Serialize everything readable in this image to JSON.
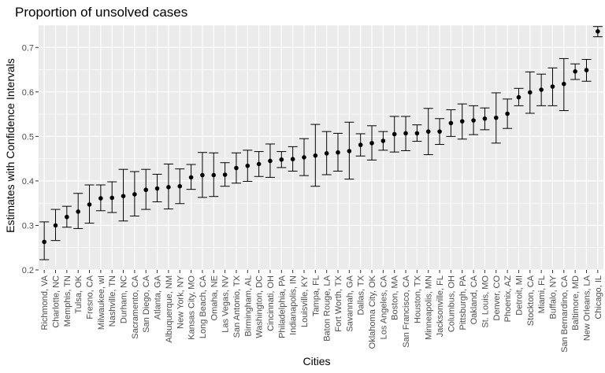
{
  "chart_data": {
    "type": "scatter",
    "title": "Proportion of unsolved cases",
    "xlabel": "Cities",
    "ylabel": "Estimates with Confidence Intervals",
    "ylim": [
      0.2,
      0.75
    ],
    "yticks": [
      "0.2",
      "0.3",
      "0.4",
      "0.5",
      "0.6",
      "0.7"
    ],
    "grid": true,
    "colors": {
      "panel": "#ebebeb",
      "grid": "#ffffff",
      "point": "#000000"
    },
    "points": [
      {
        "city": "Richmond, VA",
        "estimate": 0.263,
        "lower": 0.223,
        "upper": 0.308
      },
      {
        "city": "Charlotte, NC",
        "estimate": 0.3,
        "lower": 0.266,
        "upper": 0.336
      },
      {
        "city": "Memphis, TN",
        "estimate": 0.319,
        "lower": 0.296,
        "upper": 0.343
      },
      {
        "city": "Tulsa, OK",
        "estimate": 0.331,
        "lower": 0.293,
        "upper": 0.372
      },
      {
        "city": "Fresno, CA",
        "estimate": 0.347,
        "lower": 0.305,
        "upper": 0.391
      },
      {
        "city": "Milwaukee, wI",
        "estimate": 0.361,
        "lower": 0.333,
        "upper": 0.391
      },
      {
        "city": "Nashville, TN",
        "estimate": 0.362,
        "lower": 0.329,
        "upper": 0.398
      },
      {
        "city": "Durham, NC",
        "estimate": 0.366,
        "lower": 0.31,
        "upper": 0.426
      },
      {
        "city": "Sacramento, CA",
        "estimate": 0.37,
        "lower": 0.321,
        "upper": 0.421
      },
      {
        "city": "San Diego, CA",
        "estimate": 0.38,
        "lower": 0.336,
        "upper": 0.426
      },
      {
        "city": "Atlanta, GA",
        "estimate": 0.383,
        "lower": 0.353,
        "upper": 0.415
      },
      {
        "city": "Albuquerque, NM",
        "estimate": 0.386,
        "lower": 0.337,
        "upper": 0.438
      },
      {
        "city": "New York, NY",
        "estimate": 0.388,
        "lower": 0.349,
        "upper": 0.427
      },
      {
        "city": "Kansas City, MO",
        "estimate": 0.408,
        "lower": 0.381,
        "upper": 0.437
      },
      {
        "city": "Long Beach, CA",
        "estimate": 0.413,
        "lower": 0.363,
        "upper": 0.464
      },
      {
        "city": "Omaha, NE",
        "estimate": 0.413,
        "lower": 0.365,
        "upper": 0.463
      },
      {
        "city": "Las Vegas, NV",
        "estimate": 0.414,
        "lower": 0.388,
        "upper": 0.441
      },
      {
        "city": "San Antonio, TX",
        "estimate": 0.429,
        "lower": 0.395,
        "upper": 0.463
      },
      {
        "city": "Birmingham, AL",
        "estimate": 0.434,
        "lower": 0.399,
        "upper": 0.469
      },
      {
        "city": "Washington, DC",
        "estimate": 0.438,
        "lower": 0.41,
        "upper": 0.466
      },
      {
        "city": "Cincinnati, OH",
        "estimate": 0.445,
        "lower": 0.408,
        "upper": 0.483
      },
      {
        "city": "Philadelphia, PA",
        "estimate": 0.448,
        "lower": 0.43,
        "upper": 0.466
      },
      {
        "city": "Indianapolis, IN",
        "estimate": 0.449,
        "lower": 0.422,
        "upper": 0.477
      },
      {
        "city": "Louisville, KY",
        "estimate": 0.453,
        "lower": 0.412,
        "upper": 0.495
      },
      {
        "city": "Tampa, FL",
        "estimate": 0.457,
        "lower": 0.388,
        "upper": 0.527
      },
      {
        "city": "Baton Rouge, LA",
        "estimate": 0.462,
        "lower": 0.414,
        "upper": 0.511
      },
      {
        "city": "Fort Worth, TX",
        "estimate": 0.464,
        "lower": 0.422,
        "upper": 0.507
      },
      {
        "city": "Savannah, GA",
        "estimate": 0.467,
        "lower": 0.404,
        "upper": 0.532
      },
      {
        "city": "Dallas, TX",
        "estimate": 0.481,
        "lower": 0.456,
        "upper": 0.506
      },
      {
        "city": "Oklahoma City, OK",
        "estimate": 0.485,
        "lower": 0.447,
        "upper": 0.524
      },
      {
        "city": "Los Angeles, CA",
        "estimate": 0.49,
        "lower": 0.469,
        "upper": 0.511
      },
      {
        "city": "Boston, MA",
        "estimate": 0.505,
        "lower": 0.465,
        "upper": 0.545
      },
      {
        "city": "San Francisco, CA",
        "estimate": 0.507,
        "lower": 0.468,
        "upper": 0.545
      },
      {
        "city": "Houston, TX",
        "estimate": 0.507,
        "lower": 0.489,
        "upper": 0.526
      },
      {
        "city": "Minneapolis, MN",
        "estimate": 0.511,
        "lower": 0.459,
        "upper": 0.563
      },
      {
        "city": "Jacksonville, FL",
        "estimate": 0.511,
        "lower": 0.482,
        "upper": 0.54
      },
      {
        "city": "Columbus, OH",
        "estimate": 0.53,
        "lower": 0.5,
        "upper": 0.56
      },
      {
        "city": "Pittsburgh, PA",
        "estimate": 0.534,
        "lower": 0.494,
        "upper": 0.573
      },
      {
        "city": "Oakland, CA",
        "estimate": 0.536,
        "lower": 0.504,
        "upper": 0.569
      },
      {
        "city": "St. Louis, MO",
        "estimate": 0.54,
        "lower": 0.515,
        "upper": 0.564
      },
      {
        "city": "Denver, CO",
        "estimate": 0.542,
        "lower": 0.485,
        "upper": 0.598
      },
      {
        "city": "Phoenix, AZ",
        "estimate": 0.551,
        "lower": 0.518,
        "upper": 0.584
      },
      {
        "city": "Detroit, MI",
        "estimate": 0.588,
        "lower": 0.569,
        "upper": 0.608
      },
      {
        "city": "Stockton, CA",
        "estimate": 0.599,
        "lower": 0.552,
        "upper": 0.645
      },
      {
        "city": "Miami, FL",
        "estimate": 0.605,
        "lower": 0.569,
        "upper": 0.64
      },
      {
        "city": "Buffalo, NY",
        "estimate": 0.612,
        "lower": 0.569,
        "upper": 0.654
      },
      {
        "city": "San Bernardino, CA",
        "estimate": 0.618,
        "lower": 0.558,
        "upper": 0.675
      },
      {
        "city": "Baltimore, MD",
        "estimate": 0.646,
        "lower": 0.628,
        "upper": 0.663
      },
      {
        "city": "New Orleans, LA",
        "estimate": 0.649,
        "lower": 0.624,
        "upper": 0.673
      },
      {
        "city": "Chicago, IL",
        "estimate": 0.736,
        "lower": 0.724,
        "upper": 0.747
      }
    ]
  }
}
